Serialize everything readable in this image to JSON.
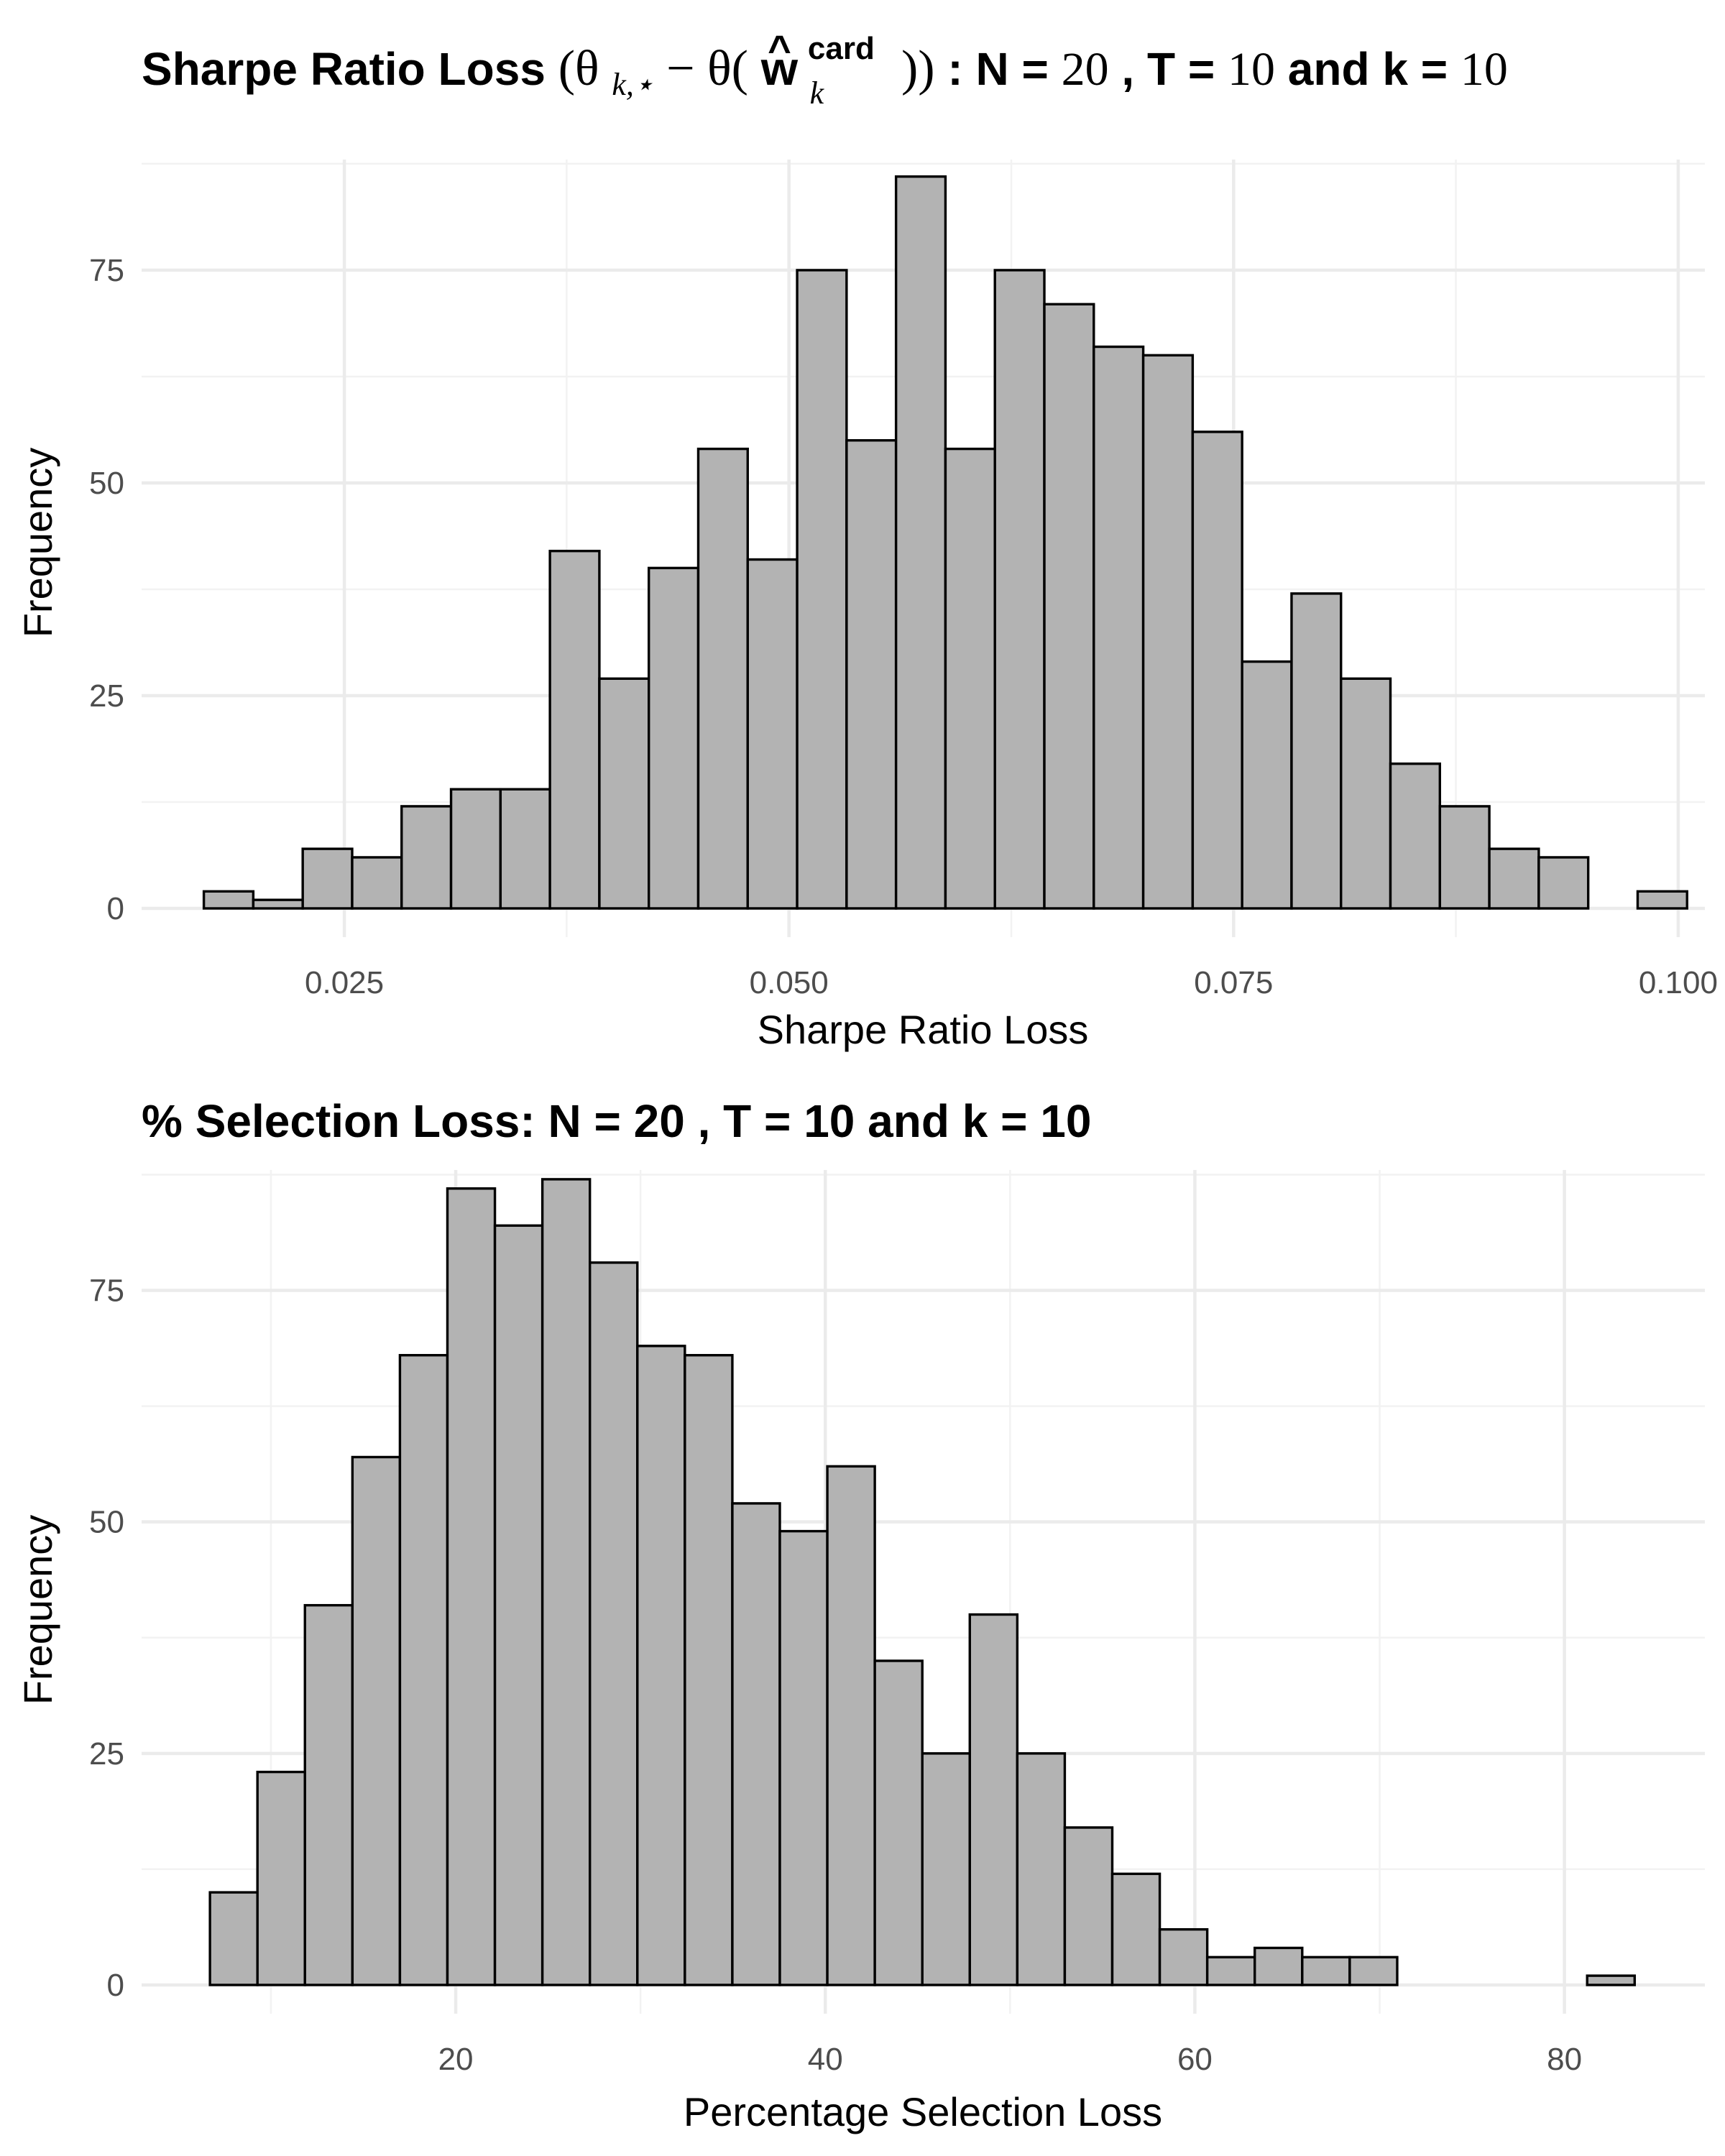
{
  "chart_data": [
    {
      "type": "bar",
      "title": {
        "prefix": "Sharpe Ratio Loss ",
        "math_open": "(θ",
        "math_sub1": "k,⋆",
        "math_mid": " − θ(",
        "math_w": "w",
        "math_hat": "^",
        "math_sup": "card",
        "math_sub2": "k",
        "math_close": "))",
        "colon_n": " : N = ",
        "n_val": "20",
        "comma_t": " , T = ",
        "t_val": "10",
        "and_k": "  and k = ",
        "k_val": "10"
      },
      "xlabel": "Sharpe Ratio Loss",
      "ylabel": "Frequency",
      "xlim": [
        0.0136,
        0.1015
      ],
      "ylim": [
        0,
        88
      ],
      "x_ticks": [
        0.025,
        0.05,
        0.075,
        0.1
      ],
      "x_tick_labels": [
        "0.025",
        "0.050",
        "0.075",
        "0.100"
      ],
      "y_ticks": [
        0,
        25,
        50,
        75
      ],
      "y_tick_labels": [
        "0",
        "25",
        "50",
        "75"
      ],
      "grid": true,
      "bin_width": 0.00278,
      "bin_start": 0.0171,
      "values": [
        2,
        1,
        7,
        6,
        12,
        14,
        14,
        42,
        27,
        40,
        54,
        41,
        75,
        55,
        86,
        54,
        75,
        71,
        66,
        65,
        56,
        29,
        37,
        27,
        17,
        12,
        7,
        6,
        0,
        2
      ]
    },
    {
      "type": "bar",
      "title": "% Selection Loss: N = 20 , T = 10 and k = 10",
      "xlabel": "Percentage Selection Loss",
      "ylabel": "Frequency",
      "xlim": [
        3.0,
        87.6
      ],
      "ylim": [
        0,
        88
      ],
      "x_ticks": [
        20,
        40,
        60,
        80
      ],
      "x_tick_labels": [
        "20",
        "40",
        "60",
        "80"
      ],
      "y_ticks": [
        0,
        25,
        50,
        75
      ],
      "y_tick_labels": [
        "0",
        "25",
        "50",
        "75"
      ],
      "grid": true,
      "bin_width": 2.57,
      "bin_start": 6.7,
      "values": [
        10,
        23,
        41,
        57,
        68,
        86,
        82,
        87,
        78,
        69,
        68,
        52,
        49,
        56,
        35,
        25,
        40,
        25,
        17,
        12,
        6,
        3,
        4,
        3,
        3,
        0,
        0,
        0,
        0,
        1
      ]
    }
  ]
}
